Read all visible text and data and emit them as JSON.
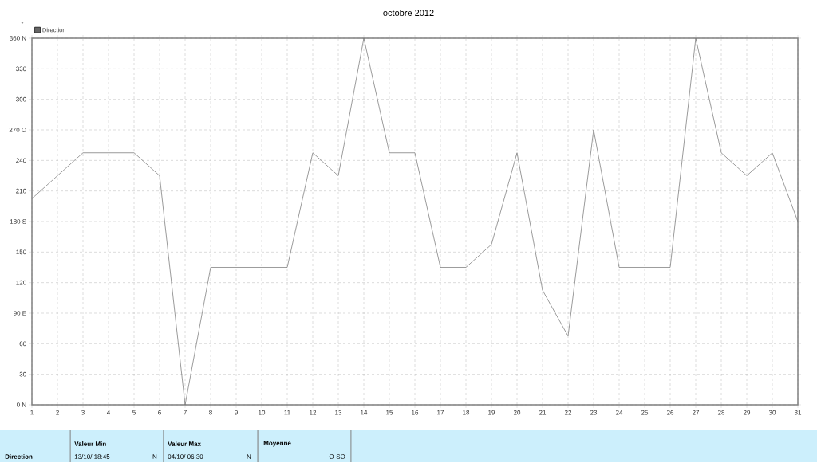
{
  "chart_data": {
    "type": "line",
    "title": "octobre 2012",
    "x": [
      1,
      2,
      3,
      4,
      5,
      6,
      7,
      8,
      9,
      10,
      11,
      12,
      13,
      14,
      15,
      16,
      17,
      18,
      19,
      20,
      21,
      22,
      23,
      24,
      25,
      26,
      27,
      28,
      29,
      30,
      31
    ],
    "series": [
      {
        "name": "Direction",
        "color": "#707070",
        "values": [
          202.5,
          225,
          247.5,
          247.5,
          247.5,
          225,
          0,
          135,
          135,
          135,
          135,
          247.5,
          225,
          360,
          247.5,
          247.5,
          135,
          135,
          157.5,
          247.5,
          112.5,
          67.5,
          270,
          135,
          135,
          135,
          360,
          247.5,
          225,
          247.5,
          180
        ]
      }
    ],
    "xlim": [
      1,
      31
    ],
    "xticks": [
      1,
      2,
      3,
      4,
      5,
      6,
      7,
      8,
      9,
      10,
      11,
      12,
      13,
      14,
      15,
      16,
      17,
      18,
      19,
      20,
      21,
      22,
      23,
      24,
      25,
      26,
      27,
      28,
      29,
      30,
      31
    ],
    "ylim": [
      0,
      360
    ],
    "yticks": [
      {
        "value": 0,
        "label": "0  N"
      },
      30,
      60,
      {
        "value": 90,
        "label": "90  E"
      },
      120,
      150,
      {
        "value": 180,
        "label": "180 S"
      },
      210,
      240,
      {
        "value": 270,
        "label": "270 O"
      },
      300,
      330,
      {
        "value": 360,
        "label": "360 N"
      }
    ],
    "grid": true,
    "legend": "top left",
    "marker": "none",
    "line_style": "solid",
    "annotations": [
      "°",
      "Direction",
      "Valeur Min",
      "13/10/ 18:45",
      "N",
      "Valeur Max",
      "04/10/ 06:30",
      "N",
      "Moyenne",
      "O-SO"
    ]
  }
}
